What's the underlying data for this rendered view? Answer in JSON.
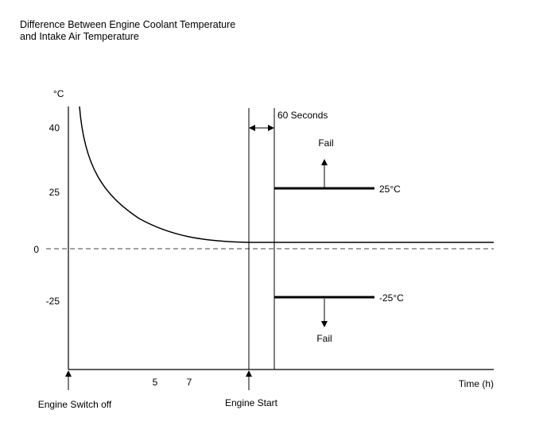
{
  "title": {
    "line1": "Difference Between Engine Coolant Temperature",
    "line2": "and Intake Air Temperature"
  },
  "axes": {
    "y_unit": "°C",
    "x_unit": "Time (h)",
    "y_ticks": [
      "40",
      "25",
      "0",
      "-25"
    ],
    "x_ticks": [
      "5",
      "7"
    ]
  },
  "events": {
    "engine_switch_off": "Engine Switch off",
    "engine_start": "Engine Start"
  },
  "window": {
    "label": "60 Seconds"
  },
  "thresholds": {
    "upper": {
      "label": "25°C",
      "fail_label": "Fail"
    },
    "lower": {
      "label": "-25°C",
      "fail_label": "Fail"
    }
  },
  "chart_data": {
    "type": "line",
    "title": "Difference Between Engine Coolant Temperature and Intake Air Temperature",
    "xlabel": "Time (h)",
    "ylabel": "°C",
    "y_ticks": [
      40,
      25,
      0,
      -25
    ],
    "series": [
      {
        "name": "temperature difference",
        "description": "decays from above 40 toward slightly above 0 after engine switch off"
      }
    ],
    "thresholds": [
      25,
      -25
    ],
    "window": "60 Seconds"
  }
}
